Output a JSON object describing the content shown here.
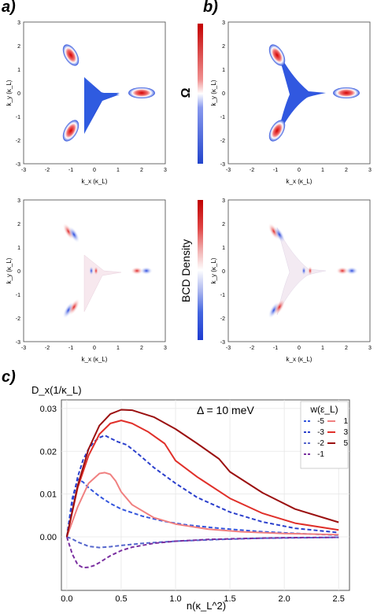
{
  "labels": {
    "a": "a)",
    "b": "b)",
    "c": "c)"
  },
  "top_row": {
    "ylabel": "k_y (κ_L)",
    "xlabel": "k_x (κ_L)",
    "colorbar_label": "Ω"
  },
  "bottom_row": {
    "ylabel": "k_y (κ_L)",
    "xlabel": "k_x (κ_L)",
    "colorbar_label": "BCD Density"
  },
  "map_ticks": {
    "x": [
      "-3",
      "-2",
      "-1",
      "0",
      "1",
      "2",
      "3"
    ],
    "y": [
      "-3",
      "-2",
      "-1",
      "0",
      "1",
      "2",
      "3"
    ]
  },
  "colors": {
    "positive": "#d62728",
    "negative": "#1f4fd6",
    "dark_red": "#8b0000",
    "purple": "#6a1b9a"
  },
  "chart_data": {
    "type": "line",
    "ylabel": "D_x(1/κ_L)",
    "xlabel": "n(κ_L^2)",
    "annotation": "Δ = 10 meV",
    "legend_title": "w(ε_L)",
    "xlim": [
      -0.05,
      2.6
    ],
    "ylim": [
      -0.0125,
      0.032
    ],
    "xticks": [
      "0.0",
      "0.5",
      "1.0",
      "1.5",
      "2.0",
      "2.5"
    ],
    "yticks": [
      "0.00",
      "0.01",
      "0.02",
      "0.03"
    ],
    "series": [
      {
        "name": "-5",
        "style": "dashed",
        "color": "#3355dd",
        "x": [
          0,
          0.05,
          0.1,
          0.15,
          0.2,
          0.3,
          0.4,
          0.5,
          0.7,
          0.9,
          1.1,
          1.4,
          1.8,
          2.2,
          2.5
        ],
        "y": [
          0,
          0.009,
          0.0135,
          0.0128,
          0.0115,
          0.0095,
          0.0078,
          0.0065,
          0.0048,
          0.0036,
          0.0028,
          0.002,
          0.0012,
          0.0007,
          0.0004
        ]
      },
      {
        "name": "-3",
        "style": "dashed",
        "color": "#2b3fcc",
        "x": [
          0,
          0.05,
          0.1,
          0.15,
          0.2,
          0.25,
          0.3,
          0.35,
          0.38,
          0.42,
          0.47,
          0.55,
          0.65,
          0.8,
          1.0,
          1.2,
          1.5,
          1.8,
          2.1,
          2.5
        ],
        "y": [
          0,
          0.008,
          0.014,
          0.018,
          0.0205,
          0.0222,
          0.0232,
          0.0237,
          0.0233,
          0.0228,
          0.0222,
          0.0215,
          0.0195,
          0.0162,
          0.0125,
          0.0092,
          0.0058,
          0.0035,
          0.002,
          0.001
        ]
      },
      {
        "name": "-2",
        "style": "dashed",
        "color": "#5566cc",
        "x": [
          0,
          0.05,
          0.1,
          0.2,
          0.3,
          0.4,
          0.5,
          0.7,
          1.0,
          1.4,
          1.8,
          2.2,
          2.5
        ],
        "y": [
          0,
          -0.0005,
          -0.0012,
          -0.0022,
          -0.0025,
          -0.0023,
          -0.002,
          -0.0015,
          -0.001,
          -0.0006,
          -0.0003,
          -0.0002,
          -0.0001
        ]
      },
      {
        "name": "-1",
        "style": "dashed",
        "color": "#7a2fa0",
        "x": [
          0,
          0.05,
          0.1,
          0.15,
          0.2,
          0.25,
          0.3,
          0.35,
          0.4,
          0.5,
          0.6,
          0.8,
          1.0,
          1.3,
          1.6,
          2.0,
          2.5
        ],
        "y": [
          0,
          -0.004,
          -0.0065,
          -0.0072,
          -0.0071,
          -0.0067,
          -0.006,
          -0.0052,
          -0.0044,
          -0.0032,
          -0.0024,
          -0.0015,
          -0.001,
          -0.0006,
          -0.0004,
          -0.0002,
          -0.0001
        ]
      },
      {
        "name": "1",
        "style": "solid",
        "color": "#f08080",
        "x": [
          0,
          0.1,
          0.2,
          0.3,
          0.35,
          0.4,
          0.45,
          0.5,
          0.6,
          0.8,
          1.0,
          1.3,
          1.6,
          2.0,
          2.5
        ],
        "y": [
          0,
          0.007,
          0.0125,
          0.0148,
          0.015,
          0.0146,
          0.013,
          0.0105,
          0.0075,
          0.0045,
          0.003,
          0.0018,
          0.0012,
          0.0008,
          0.0005
        ]
      },
      {
        "name": "3",
        "style": "solid",
        "color": "#e0302a",
        "x": [
          0,
          0.1,
          0.2,
          0.3,
          0.4,
          0.5,
          0.6,
          0.75,
          0.9,
          1.0,
          1.2,
          1.5,
          1.8,
          2.1,
          2.5
        ],
        "y": [
          0,
          0.0115,
          0.019,
          0.024,
          0.0265,
          0.0272,
          0.0265,
          0.0245,
          0.0218,
          0.0178,
          0.014,
          0.009,
          0.0055,
          0.0032,
          0.0016
        ]
      },
      {
        "name": "5",
        "style": "solid",
        "color": "#9b1010",
        "x": [
          0,
          0.1,
          0.2,
          0.3,
          0.4,
          0.5,
          0.6,
          0.8,
          1.0,
          1.2,
          1.4,
          1.5,
          1.8,
          2.1,
          2.5
        ],
        "y": [
          0,
          0.012,
          0.0205,
          0.026,
          0.0287,
          0.0297,
          0.0296,
          0.028,
          0.0252,
          0.0218,
          0.0182,
          0.0152,
          0.0103,
          0.0065,
          0.0034
        ]
      }
    ]
  }
}
